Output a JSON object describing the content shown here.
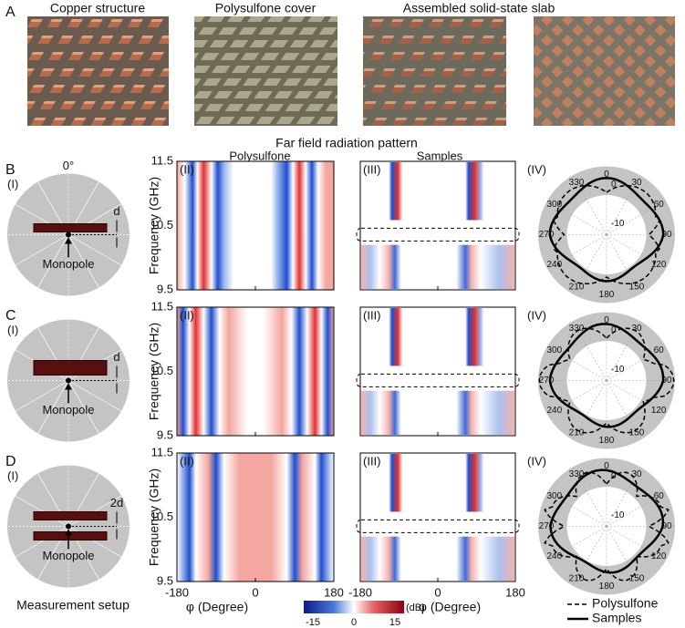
{
  "panel_a": {
    "label": "A",
    "photos": [
      "Copper structure",
      "Polysulfone cover",
      "Assembled solid-state slab"
    ]
  },
  "title": "Far field radiation pattern",
  "columns": [
    "Polysulfone",
    "Samples"
  ],
  "sublabels": [
    "(I)",
    "(II)",
    "(III)",
    "(IV)"
  ],
  "setup": {
    "zero_angle": "0°",
    "source": "Monopole",
    "caption": "Measurement setup"
  },
  "rows": [
    {
      "label": "B",
      "spacing": "d"
    },
    {
      "label": "C",
      "spacing": "d"
    },
    {
      "label": "D",
      "spacing": "2d"
    }
  ],
  "heatmap": {
    "y_label": "Frequency (GHz)",
    "yticks": [
      "11.5",
      "10.5",
      "9.5"
    ],
    "xticks": [
      "-180",
      "0",
      "180"
    ],
    "x_label": "φ (Degree)",
    "colorbar": {
      "ticks": [
        "-15",
        "0",
        "15"
      ],
      "unit": "(dB)"
    }
  },
  "polar": {
    "angles": [
      "0",
      "330",
      "300",
      "270",
      "240",
      "210",
      "180",
      "150",
      "120",
      "90",
      "60",
      "30"
    ],
    "radial": [
      "0",
      "-10"
    ]
  },
  "legend": [
    "Polysulfone",
    "Samples"
  ]
}
